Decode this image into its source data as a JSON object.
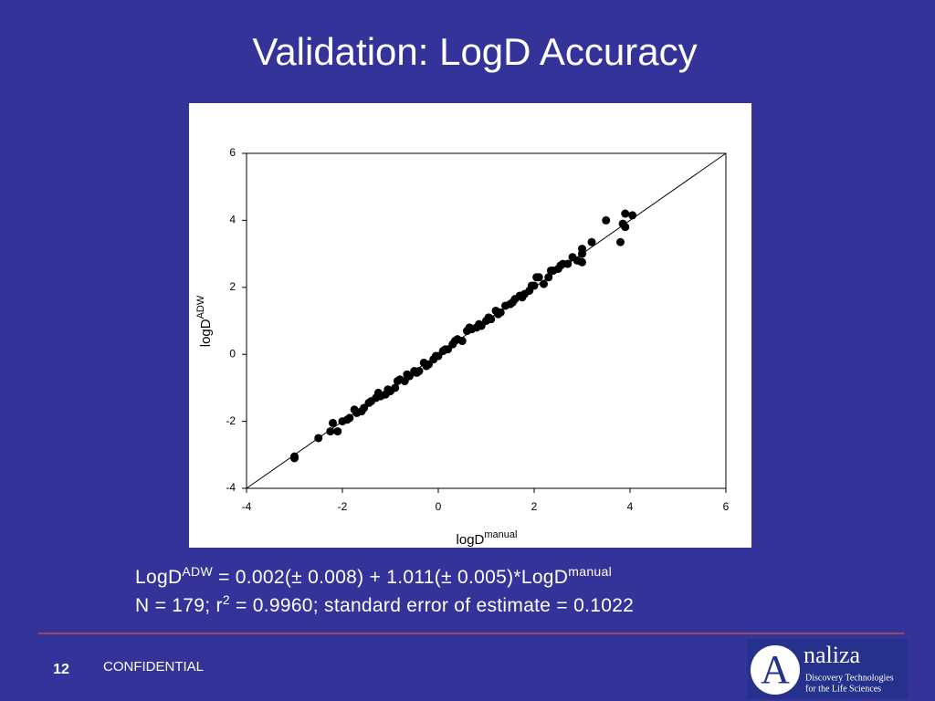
{
  "title": "Validation: LogD Accuracy",
  "chart_data": {
    "type": "scatter",
    "x_label": "logD",
    "x_label_sup": "manual",
    "y_label": "logD",
    "y_label_sup": "ADW",
    "x": [
      -3,
      -3,
      -2.5,
      -2.25,
      -2.2,
      -2.1,
      -2,
      -1.9,
      -1.85,
      -1.75,
      -1.7,
      -1.6,
      -1.55,
      -1.45,
      -1.4,
      -1.3,
      -1.25,
      -1.2,
      -1.1,
      -1.05,
      -1,
      -0.9,
      -0.85,
      -0.8,
      -0.7,
      -0.65,
      -0.6,
      -0.5,
      -0.45,
      -0.4,
      -0.3,
      -0.25,
      -0.2,
      -0.1,
      -0.05,
      0,
      0.1,
      0.15,
      0.2,
      0.3,
      0.35,
      0.4,
      0.5,
      0.6,
      0.65,
      0.7,
      0.8,
      0.85,
      0.9,
      1,
      1.05,
      1.1,
      1.2,
      1.25,
      1.3,
      1.4,
      1.5,
      1.55,
      1.6,
      1.7,
      1.75,
      1.8,
      1.9,
      1.95,
      2,
      2.05,
      2.1,
      2.2,
      2.3,
      2.35,
      2.4,
      2.5,
      2.55,
      2.6,
      2.7,
      2.8,
      2.9,
      3,
      3,
      3,
      3.2,
      3.5,
      3.8,
      3.85,
      3.9,
      3.9,
      4.05
    ],
    "y": [
      -3.05,
      -3.1,
      -2.5,
      -2.3,
      -2.05,
      -2.3,
      -2,
      -1.95,
      -1.9,
      -1.65,
      -1.75,
      -1.7,
      -1.6,
      -1.45,
      -1.4,
      -1.3,
      -1.15,
      -1.25,
      -1.2,
      -1.05,
      -1.1,
      -1,
      -0.8,
      -0.75,
      -0.8,
      -0.6,
      -0.65,
      -0.5,
      -0.55,
      -0.5,
      -0.25,
      -0.35,
      -0.3,
      -0.15,
      -0.05,
      -0.05,
      0.1,
      0.15,
      0.15,
      0.3,
      0.4,
      0.45,
      0.4,
      0.7,
      0.8,
      0.75,
      0.8,
      0.9,
      0.85,
      1,
      1.1,
      1.05,
      1.3,
      1.2,
      1.25,
      1.45,
      1.5,
      1.55,
      1.65,
      1.75,
      1.7,
      1.8,
      1.9,
      2.05,
      2.05,
      2.3,
      2.3,
      2.1,
      2.3,
      2.5,
      2.5,
      2.55,
      2.65,
      2.7,
      2.7,
      2.9,
      2.8,
      3,
      3.15,
      2.75,
      3.35,
      4,
      3.35,
      3.9,
      3.8,
      4.2,
      4.15
    ],
    "xlim": [
      -4,
      6
    ],
    "ylim": [
      -4,
      6
    ],
    "xticks": [
      -4,
      -2,
      0,
      2,
      4,
      6
    ],
    "yticks": [
      -4,
      -2,
      0,
      2,
      4,
      6
    ],
    "color": "#000000",
    "identity_line": true
  },
  "equation": {
    "lhs": "LogD",
    "lhs_sup": "ADW",
    "rhs": "= 0.002(± 0.008) + 1.011(± 0.005)*LogD",
    "rhs_sup": "manual"
  },
  "stats": {
    "pre": "N = 179; r",
    "sup": "2",
    "post": "= 0.9960; standard error of estimate = 0.1022"
  },
  "footer": {
    "page_number": "12",
    "label": "CONFIDENTIAL"
  },
  "logo": {
    "initial": "A",
    "name": "naliza",
    "line1": "Discovery Technologies",
    "line2": "for the Life Sciences"
  }
}
